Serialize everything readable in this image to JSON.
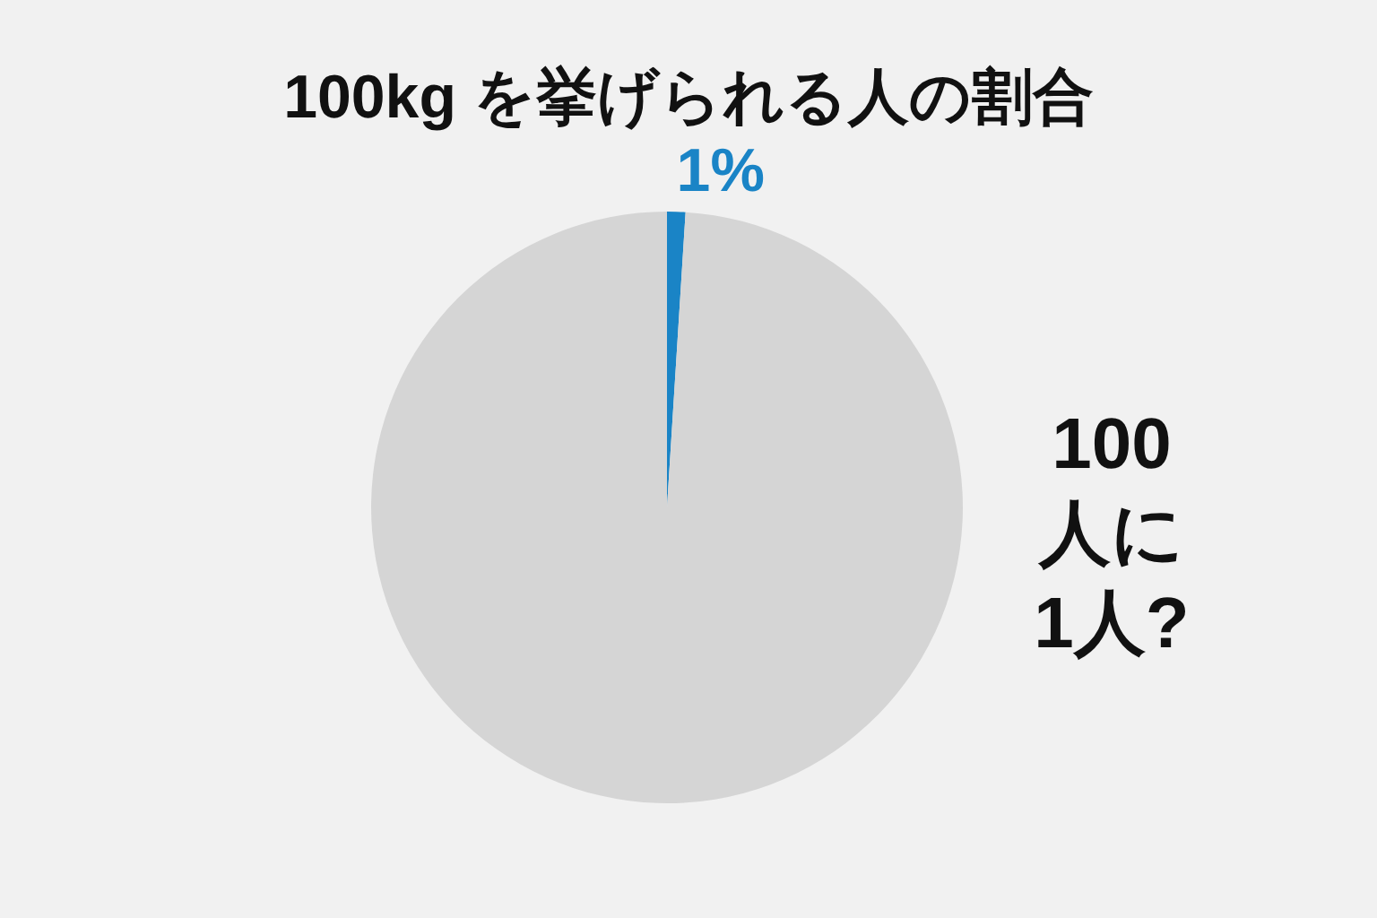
{
  "chart_data": {
    "type": "pie",
    "title": "100kg を挙げられる人の割合",
    "categories": [
      null,
      null
    ],
    "values": [
      1,
      99
    ],
    "colors": [
      "#1a84c6",
      "#d5d5d5"
    ],
    "value_labels": [
      "1%",
      null
    ],
    "annotations": [
      "100\n人に\n1人?"
    ],
    "legend": false
  }
}
